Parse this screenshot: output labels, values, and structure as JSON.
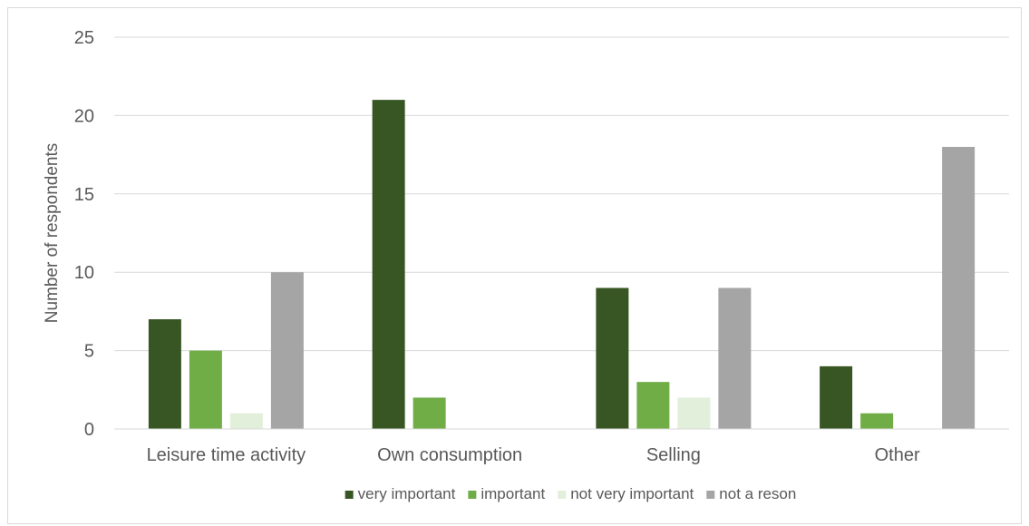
{
  "chart_data": {
    "type": "bar",
    "title": "",
    "xlabel": "",
    "ylabel": "Number of respondents",
    "ylim": [
      0,
      25
    ],
    "yticks": [
      0,
      5,
      10,
      15,
      20,
      25
    ],
    "grid": true,
    "legend_position": "bottom",
    "categories": [
      "Leisure time activity",
      "Own consumption",
      "Selling",
      "Other"
    ],
    "series": [
      {
        "name": "very important",
        "color": "#375623",
        "values": [
          7,
          21,
          9,
          4
        ]
      },
      {
        "name": "important",
        "color": "#70ad47",
        "values": [
          5,
          2,
          3,
          1
        ]
      },
      {
        "name": "not very important",
        "color": "#e2efda",
        "values": [
          1,
          0,
          2,
          0
        ]
      },
      {
        "name": "not a reson",
        "color": "#a5a5a5",
        "values": [
          10,
          0,
          9,
          18
        ]
      }
    ]
  }
}
